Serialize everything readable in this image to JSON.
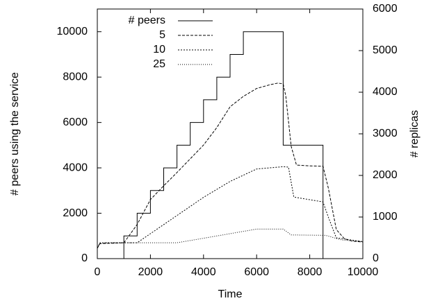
{
  "chart_data": {
    "type": "line",
    "xlabel": "Time",
    "ylabel": "# peers using the service",
    "y2label": "# replicas",
    "xlim": [
      0,
      10000
    ],
    "xticks": [
      0,
      2000,
      4000,
      6000,
      8000,
      10000
    ],
    "ylim": [
      0,
      11000
    ],
    "yticks": [
      0,
      2000,
      4000,
      6000,
      8000,
      10000
    ],
    "y2lim": [
      0,
      6000
    ],
    "y2ticks": [
      0,
      1000,
      2000,
      3000,
      4000,
      5000,
      6000
    ],
    "legend": "upper-left",
    "series": [
      {
        "name": "# peers",
        "color": "#000000",
        "dash": "none",
        "axis": "y",
        "x": [
          0,
          1000,
          1000,
          1500,
          1500,
          2000,
          2000,
          2500,
          2500,
          3000,
          3000,
          3500,
          3500,
          4000,
          4000,
          4500,
          4500,
          5000,
          5000,
          5500,
          5500,
          7000,
          7000,
          8500,
          8500,
          10000
        ],
        "values": [
          0,
          0,
          1000,
          1000,
          2000,
          2000,
          3000,
          3000,
          4000,
          4000,
          5000,
          5000,
          6000,
          6000,
          7000,
          7000,
          8000,
          8000,
          9000,
          9000,
          10000,
          10000,
          5000,
          5000,
          0,
          0
        ]
      },
      {
        "name": "5",
        "color": "#000000",
        "dash": "4,2",
        "axis": "y2",
        "x": [
          0,
          100,
          1000,
          1500,
          2000,
          2500,
          3000,
          3500,
          4000,
          4500,
          5000,
          5500,
          6000,
          6500,
          6800,
          7000,
          7100,
          7300,
          7500,
          8000,
          8500,
          8700,
          9000,
          9300,
          9600,
          10000
        ],
        "values": [
          250,
          360,
          380,
          820,
          1420,
          1750,
          2070,
          2400,
          2730,
          3150,
          3650,
          3900,
          4090,
          4180,
          4220,
          4200,
          3900,
          2700,
          2250,
          2230,
          2220,
          1700,
          700,
          480,
          420,
          400
        ]
      },
      {
        "name": "10",
        "color": "#000000",
        "dash": "2,2",
        "axis": "y2",
        "x": [
          0,
          100,
          1500,
          2000,
          3000,
          4000,
          5000,
          6000,
          7000,
          7200,
          7400,
          8500,
          8700,
          9000,
          10000
        ],
        "values": [
          250,
          380,
          382,
          600,
          1036,
          1473,
          1855,
          2155,
          2210,
          2200,
          1480,
          1364,
          1000,
          500,
          409
        ]
      },
      {
        "name": "25",
        "color": "#000000",
        "dash": "1,2",
        "axis": "y2",
        "x": [
          0,
          100,
          3000,
          4000,
          5000,
          6000,
          7000,
          7300,
          8600,
          9200,
          10000
        ],
        "values": [
          250,
          380,
          382,
          490,
          600,
          710,
          710,
          570,
          560,
          450,
          409
        ]
      }
    ]
  }
}
